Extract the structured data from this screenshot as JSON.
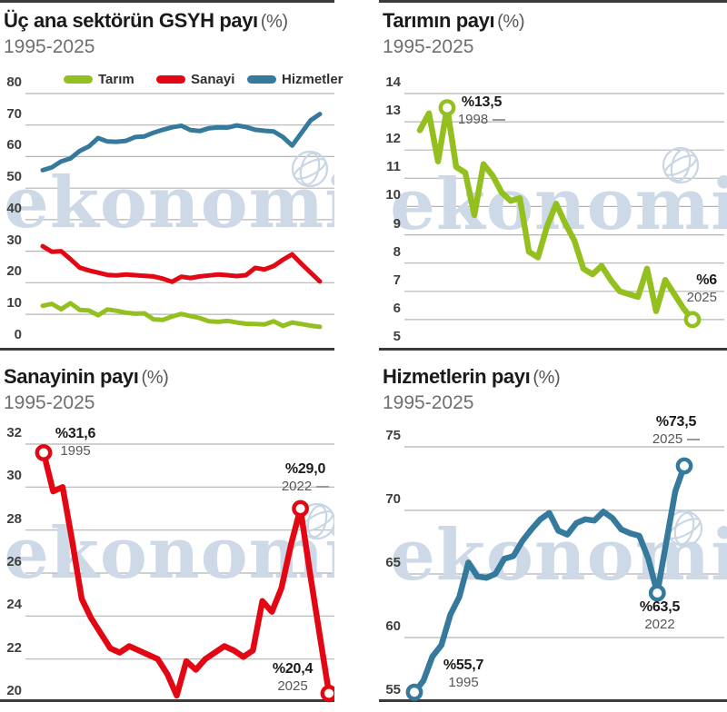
{
  "colors": {
    "green": "#93c01f",
    "red": "#e30613",
    "blue": "#35799c",
    "grid": "#b5b5b5",
    "rule": "#3b3b39",
    "title": "#1a1a19",
    "title_suffix": "#575756",
    "subtitle": "#6f6f6e",
    "axis_label": "#3f3f3e",
    "annotation_value": "#1a1a19",
    "annotation_year": "#575756",
    "watermark_fill": "#cdd9e6",
    "watermark_stroke": "#c9d6e4"
  },
  "watermark_text": "ekonomi",
  "years": {
    "start": 1995,
    "end": 2025
  },
  "legend": [
    {
      "label": "Tarım",
      "color": "green"
    },
    {
      "label": "Sanayi",
      "color": "red"
    },
    {
      "label": "Hizmetler",
      "color": "blue"
    }
  ],
  "series_values": {
    "tarim": [
      12.7,
      13.3,
      11.6,
      13.5,
      11.4,
      11.2,
      9.7,
      11.5,
      11.1,
      10.5,
      10.2,
      10.3,
      8.4,
      8.2,
      9.3,
      10.1,
      9.4,
      8.8,
      7.8,
      7.6,
      7.9,
      7.4,
      7.0,
      6.9,
      6.8,
      7.8,
      6.3,
      7.4,
      6.9,
      6.4,
      6.0
    ],
    "sanayi": [
      31.6,
      29.8,
      30.0,
      27.5,
      24.8,
      23.9,
      23.2,
      22.5,
      22.3,
      22.6,
      22.4,
      22.2,
      22.0,
      21.3,
      20.3,
      21.9,
      21.5,
      22.0,
      22.3,
      22.6,
      22.4,
      22.1,
      22.4,
      24.7,
      24.2,
      25.3,
      27.3,
      29.0,
      26.0,
      23.2,
      20.4
    ],
    "hizmetler": [
      55.7,
      56.6,
      58.5,
      59.4,
      61.8,
      63.2,
      65.9,
      64.8,
      64.7,
      65.0,
      66.2,
      66.4,
      67.6,
      68.5,
      69.3,
      69.8,
      68.4,
      68.1,
      69.0,
      69.3,
      69.2,
      69.9,
      69.4,
      68.5,
      68.2,
      68.0,
      66.2,
      63.5,
      67.5,
      71.5,
      73.5
    ]
  },
  "chart_data": [
    {
      "type": "line",
      "title": "Üç ana sektörün GSYH payı",
      "title_suffix": "(%)",
      "subtitle": "1995-2025",
      "x_range": [
        1995,
        2025
      ],
      "ylim": [
        0,
        80
      ],
      "yticks": [
        80,
        70,
        60,
        50,
        40,
        30,
        20,
        10,
        0
      ],
      "grid": true,
      "legend_position": "top",
      "series": [
        {
          "name": "Tarım",
          "key": "tarim",
          "color": "green"
        },
        {
          "name": "Sanayi",
          "key": "sanayi",
          "color": "red"
        },
        {
          "name": "Hizmetler",
          "key": "hizmetler",
          "color": "blue"
        }
      ]
    },
    {
      "type": "line",
      "title": "Tarımın payı",
      "title_suffix": "(%)",
      "subtitle": "1995-2025",
      "x_range": [
        1995,
        2025
      ],
      "ylim": [
        5,
        14
      ],
      "yticks": [
        14,
        13,
        12,
        11,
        10,
        9,
        8,
        7,
        6,
        5
      ],
      "grid": true,
      "series": [
        {
          "name": "Tarım",
          "key": "tarim",
          "color": "green"
        }
      ],
      "annotations": [
        {
          "value": "%13,5",
          "year": "1998",
          "point_index": 3
        },
        {
          "value": "%6",
          "year": "2025",
          "point_index": 30
        }
      ]
    },
    {
      "type": "line",
      "title": "Sanayinin payı",
      "title_suffix": "(%)",
      "subtitle": "1995-2025",
      "x_range": [
        1995,
        2025
      ],
      "ylim": [
        20,
        32
      ],
      "yticks": [
        32,
        30,
        28,
        26,
        24,
        22,
        20
      ],
      "grid": true,
      "series": [
        {
          "name": "Sanayi",
          "key": "sanayi",
          "color": "red"
        }
      ],
      "annotations": [
        {
          "value": "%31,6",
          "year": "1995",
          "point_index": 0
        },
        {
          "value": "%29,0",
          "year": "2022",
          "point_index": 27
        },
        {
          "value": "%20,4",
          "year": "2025",
          "point_index": 30
        }
      ]
    },
    {
      "type": "line",
      "title": "Hizmetlerin payı",
      "title_suffix": "(%)",
      "subtitle": "1995-2025",
      "x_range": [
        1995,
        2025
      ],
      "ylim": [
        55,
        75
      ],
      "yticks": [
        75,
        70,
        65,
        60,
        55
      ],
      "grid": true,
      "series": [
        {
          "name": "Hizmetler",
          "key": "hizmetler",
          "color": "blue"
        }
      ],
      "annotations": [
        {
          "value": "%55,7",
          "year": "1995",
          "point_index": 0
        },
        {
          "value": "%63,5",
          "year": "2022",
          "point_index": 27
        },
        {
          "value": "%73,5",
          "year": "2025",
          "point_index": 30
        }
      ]
    }
  ]
}
